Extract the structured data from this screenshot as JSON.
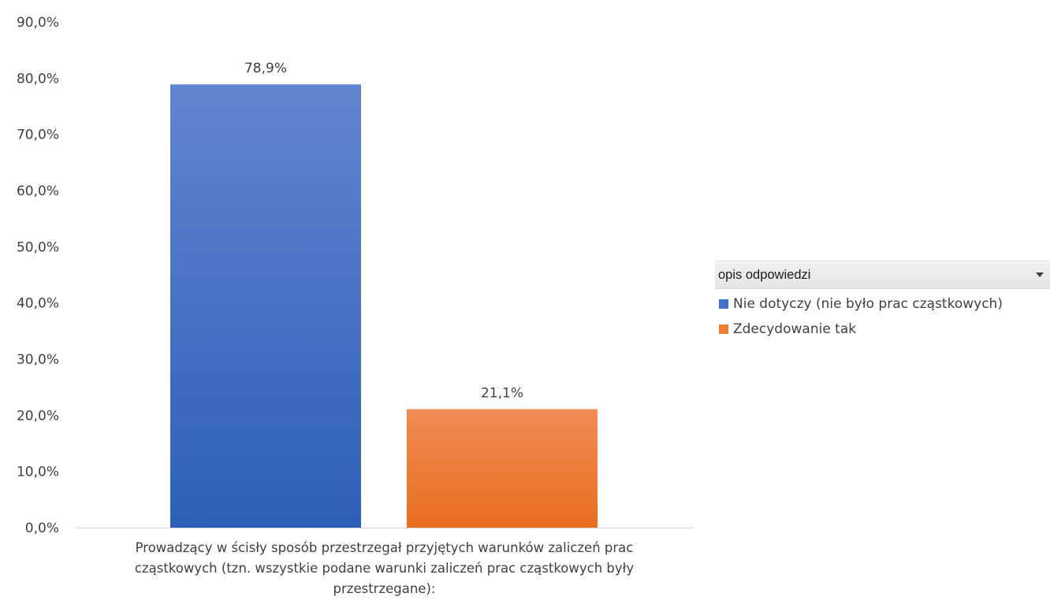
{
  "chart_data": {
    "type": "bar",
    "categories": [
      "Prowadzący w ścisły sposób przestrzegał przyjętych warunków zaliczeń prac cząstkowych (tzn. wszystkie podane warunki zaliczeń prac cząstkowych były przestrzegane):"
    ],
    "series": [
      {
        "name": "Nie dotyczy (nie było prac cząstkowych)",
        "values": [
          78.9
        ],
        "label": "78,9%",
        "color_top": "#6285cf",
        "color_bottom": "#2e5fb8"
      },
      {
        "name": "Zdecydowanie tak",
        "values": [
          21.1
        ],
        "label": "21,1%",
        "color_top": "#f08c55",
        "color_bottom": "#e86e1f"
      }
    ],
    "ylim": [
      0,
      90
    ],
    "yticks": [
      {
        "value": 0,
        "label": "0,0%"
      },
      {
        "value": 10,
        "label": "10,0%"
      },
      {
        "value": 20,
        "label": "20,0%"
      },
      {
        "value": 30,
        "label": "30,0%"
      },
      {
        "value": 40,
        "label": "40,0%"
      },
      {
        "value": 50,
        "label": "50,0%"
      },
      {
        "value": 60,
        "label": "60,0%"
      },
      {
        "value": 70,
        "label": "70,0%"
      },
      {
        "value": 80,
        "label": "80,0%"
      },
      {
        "value": 90,
        "label": "90,0%"
      }
    ],
    "grid": false,
    "legend_position": "right"
  },
  "legend": {
    "title": "opis odpowiedzi",
    "icon": "chevron-down-icon",
    "items": [
      {
        "label": "Nie dotyczy (nie było prac cząstkowych)",
        "color": "#4472c4"
      },
      {
        "label": "Zdecydowanie tak",
        "color": "#ed7d31"
      }
    ]
  },
  "category_label": {
    "line1": "Prowadzący w ścisły sposób przestrzegał przyjętych warunków zaliczeń prac",
    "line2": "cząstkowych (tzn. wszystkie podane warunki zaliczeń prac cząstkowych były",
    "line3": "przestrzegane):"
  }
}
